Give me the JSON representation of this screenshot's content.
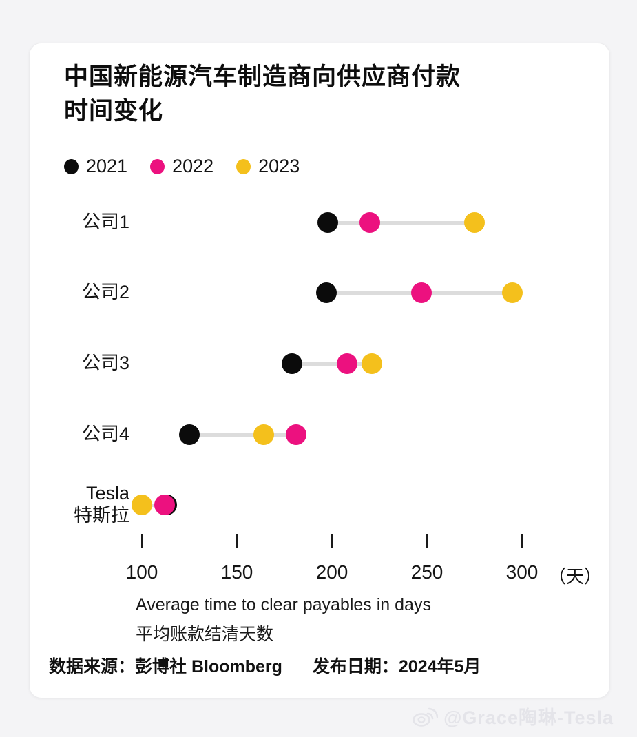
{
  "page": {
    "watermark_text": "@Grace陶琳-Tesla"
  },
  "card": {
    "title_line1": "中国新能源汽车制造商向供应商付款",
    "title_line2": "时间变化",
    "footer": {
      "source": "数据来源：彭博社 Bloomberg",
      "publish": "发布日期：2024年5月"
    }
  },
  "chart_data": {
    "type": "scatter",
    "subtype": "dumbbell-dot-plot",
    "title": "中国新能源汽车制造商向供应商付款时间变化",
    "categories": [
      [
        "公司1"
      ],
      [
        "公司2"
      ],
      [
        "公司3"
      ],
      [
        "公司4"
      ],
      [
        "Tesla",
        "特斯拉"
      ]
    ],
    "series": [
      {
        "name": "2021",
        "color": "#0B0B0B",
        "values": [
          198,
          197,
          179,
          125,
          113
        ]
      },
      {
        "name": "2022",
        "color": "#EC117F",
        "values": [
          220,
          247,
          208,
          181,
          112
        ]
      },
      {
        "name": "2023",
        "color": "#F4C01C",
        "values": [
          275,
          295,
          221,
          164,
          100
        ]
      }
    ],
    "x_ticks": [
      100,
      150,
      200,
      250,
      300
    ],
    "x_unit_label": "（天）",
    "xlabel_en": "Average time to clear payables in days",
    "xlabel_zh": "平均账款结清天数",
    "xlim": [
      87,
      312
    ],
    "grid": false,
    "legend_position": "top-left",
    "connector_color": "#DCDCDC"
  }
}
